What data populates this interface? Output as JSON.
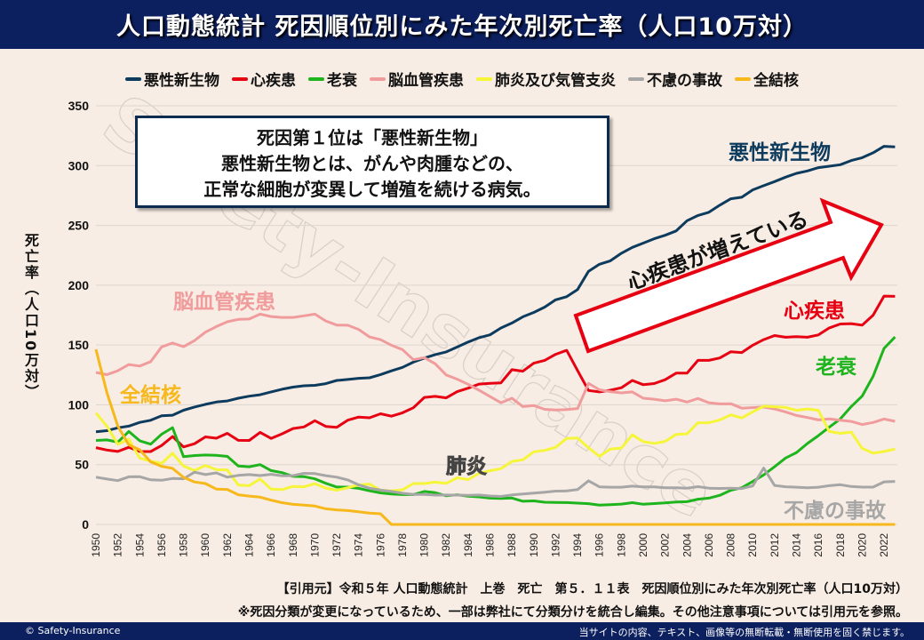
{
  "header": {
    "title": "人口動態統計 死因順位別にみた年次別死亡率（人口10万対）"
  },
  "watermark": "Safety-Insurance",
  "callout": {
    "lines": [
      "死因第１位は「悪性新生物」",
      "悪性新生物とは、がんや肉腫などの、",
      "正常な細胞が変異して増殖を続ける病気。"
    ]
  },
  "arrow_text": "心疾患が増えている",
  "series_labels": {
    "cancer": "悪性新生物",
    "heart": "心疾患",
    "senility": "老衰",
    "cerebro": "脳血管疾患",
    "tb": "全結核",
    "pneumonia": "肺炎",
    "accident": "不慮の事故"
  },
  "citation": {
    "source": "【引用元】令和５年 人口動態統計　上巻　死亡　第５．１１表　死因順位別にみた年次別死亡率（人口10万対）",
    "note": "※死因分類が変更になっているため、一部は弊社にて分類分けを統合し編集。その他注意事項については引用元を参照。"
  },
  "footer": {
    "copyright": "© Safety-Insurance",
    "notice": "当サイトの内容、テキスト、画像等の無断転載・無断使用を固く禁じます。"
  },
  "chart_data": {
    "type": "line",
    "title": "人口動態統計 死因順位別にみた年次別死亡率（人口10万対）",
    "ylabel": "死亡率（人口10万対）",
    "xlabel": "",
    "ylim": [
      0,
      350
    ],
    "yticks": [
      0,
      50,
      100,
      150,
      200,
      250,
      300,
      350
    ],
    "xlim": [
      1950,
      2023
    ],
    "xticks": [
      1950,
      1952,
      1954,
      1956,
      1958,
      1960,
      1962,
      1964,
      1966,
      1968,
      1970,
      1972,
      1974,
      1976,
      1978,
      1980,
      1982,
      1984,
      1986,
      1988,
      1990,
      1992,
      1994,
      1996,
      1998,
      2000,
      2002,
      2004,
      2006,
      2008,
      2010,
      2012,
      2014,
      2016,
      2018,
      2020,
      2022
    ],
    "grid": "horizontal",
    "legend_position": "top",
    "x_start": 1950,
    "series": [
      {
        "name": "悪性新生物",
        "color": "#0d3b5e",
        "values": [
          77.4,
          78.4,
          80.8,
          82.2,
          85.3,
          87.1,
          90.9,
          91.3,
          95.5,
          98.2,
          100.4,
          102.3,
          103.2,
          105.5,
          107.2,
          108.4,
          110.8,
          113.0,
          114.8,
          115.9,
          116.3,
          117.7,
          120.4,
          121.2,
          122.2,
          122.6,
          125.3,
          128.4,
          131.3,
          135.7,
          139.1,
          142.0,
          144.2,
          148.3,
          152.5,
          156.1,
          158.5,
          164.2,
          168.4,
          173.6,
          177.2,
          181.7,
          187.8,
          190.4,
          196.4,
          211.6,
          217.5,
          220.4,
          226.7,
          231.6,
          235.2,
          238.8,
          241.7,
          245.4,
          253.9,
          258.3,
          261.0,
          266.9,
          272.3,
          273.5,
          279.7,
          283.2,
          286.6,
          290.3,
          293.5,
          295.5,
          298.3,
          299.5,
          300.7,
          304.2,
          306.6,
          310.7,
          316.1,
          315.6
        ]
      },
      {
        "name": "心疾患",
        "color": "#e60012",
        "values": [
          64.2,
          62.2,
          61.0,
          64.5,
          61.0,
          60.9,
          66.0,
          73.5,
          64.8,
          67.5,
          73.2,
          72.1,
          76.2,
          70.3,
          70.2,
          77.0,
          71.9,
          75.7,
          80.2,
          81.5,
          86.7,
          82.0,
          81.2,
          87.2,
          89.8,
          89.2,
          92.5,
          90.5,
          93.3,
          97.6,
          106.2,
          107.1,
          105.8,
          111.0,
          113.9,
          117.3,
          117.9,
          118.4,
          129.4,
          128.1,
          134.8,
          137.2,
          142.2,
          145.6,
          128.6,
          112.0,
          110.8,
          112.2,
          114.3,
          120.4,
          116.8,
          117.8,
          121.0,
          126.5,
          126.5,
          137.2,
          137.2,
          139.2,
          144.4,
          143.7,
          149.8,
          154.5,
          157.9,
          156.5,
          157.0,
          156.5,
          158.4,
          164.3,
          167.6,
          167.9,
          166.6,
          174.9,
          190.9,
          190.7
        ]
      },
      {
        "name": "老衰",
        "color": "#1db41d",
        "values": [
          70.2,
          70.7,
          68.8,
          77.7,
          69.9,
          67.1,
          75.4,
          80.9,
          56.6,
          57.6,
          58.0,
          57.8,
          56.9,
          48.8,
          48.2,
          50.0,
          45.0,
          43.3,
          40.2,
          40.0,
          38.1,
          34.4,
          31.3,
          31.2,
          30.2,
          28.1,
          26.4,
          25.5,
          25.0,
          25.0,
          27.6,
          26.5,
          23.9,
          24.8,
          23.6,
          23.0,
          22.0,
          21.8,
          22.1,
          19.4,
          19.7,
          18.6,
          18.4,
          18.3,
          17.8,
          17.4,
          16.2,
          16.6,
          17.0,
          18.2,
          16.9,
          17.5,
          18.0,
          18.7,
          19.0,
          21.1,
          22.0,
          24.4,
          28.6,
          30.7,
          35.9,
          41.4,
          48.2,
          55.5,
          60.1,
          67.7,
          74.2,
          81.3,
          88.2,
          98.5,
          107.3,
          123.8,
          147.1,
          156.7
        ]
      },
      {
        "name": "脳血管疾患",
        "color": "#f19c9c",
        "values": [
          127.1,
          125.2,
          128.5,
          133.7,
          132.4,
          136.1,
          148.4,
          151.7,
          148.6,
          153.7,
          160.7,
          165.4,
          169.4,
          171.4,
          171.7,
          175.8,
          173.8,
          173.1,
          173.1,
          174.4,
          175.8,
          170.1,
          166.7,
          166.5,
          163.0,
          156.7,
          154.5,
          149.8,
          146.2,
          137.7,
          139.5,
          134.3,
          125.0,
          121.4,
          117.2,
          112.2,
          106.9,
          101.7,
          105.5,
          98.5,
          99.4,
          96.2,
          95.6,
          96.0,
          96.9,
          117.9,
          112.6,
          111.0,
          110.0,
          110.8,
          105.5,
          104.7,
          103.4,
          104.7,
          102.3,
          105.3,
          101.7,
          100.8,
          100.9,
          97.2,
          97.7,
          98.2,
          96.5,
          94.1,
          91.1,
          89.4,
          87.4,
          88.2,
          87.1,
          86.1,
          83.5,
          85.2,
          88.1,
          86.2
        ]
      },
      {
        "name": "肺炎及び気管支炎",
        "color": "#f5f53a",
        "values": [
          93.2,
          82.2,
          67.1,
          71.3,
          55.4,
          53.0,
          51.0,
          59.5,
          48.8,
          45.0,
          49.3,
          45.8,
          45.6,
          33.0,
          32.4,
          38.0,
          29.5,
          29.1,
          31.8,
          31.4,
          34.1,
          30.4,
          28.6,
          30.7,
          33.1,
          33.7,
          28.6,
          28.1,
          29.0,
          34.2,
          34.2,
          35.4,
          34.3,
          39.0,
          37.5,
          42.7,
          44.9,
          46.7,
          52.7,
          54.0,
          60.7,
          61.9,
          64.5,
          71.9,
          72.3,
          64.1,
          56.9,
          63.1,
          63.8,
          74.9,
          69.2,
          67.8,
          69.4,
          75.3,
          75.7,
          85.0,
          85.0,
          87.4,
          91.6,
          89.0,
          94.1,
          98.9,
          98.4,
          97.8,
          95.4,
          96.5,
          95.4,
          77.7,
          76.2,
          77.2,
          63.6,
          59.6,
          61.0,
          63.0
        ]
      },
      {
        "name": "不慮の事故",
        "color": "#a6a6a6",
        "values": [
          39.5,
          38.0,
          36.6,
          39.8,
          39.9,
          37.3,
          36.9,
          38.4,
          38.2,
          43.7,
          41.7,
          43.1,
          39.5,
          41.0,
          41.7,
          40.9,
          41.9,
          40.7,
          40.8,
          42.7,
          42.5,
          40.8,
          39.5,
          37.2,
          33.1,
          30.3,
          28.7,
          27.6,
          26.1,
          25.1,
          25.1,
          24.5,
          24.6,
          24.5,
          24.3,
          24.6,
          23.8,
          23.4,
          24.7,
          25.4,
          26.2,
          26.9,
          27.9,
          28.0,
          29.1,
          36.5,
          31.4,
          31.1,
          31.1,
          32.0,
          31.4,
          31.4,
          30.7,
          30.7,
          30.3,
          31.6,
          30.3,
          30.1,
          30.3,
          30.0,
          32.2,
          47.1,
          32.6,
          31.5,
          31.1,
          30.6,
          31.1,
          32.4,
          33.2,
          31.7,
          31.2,
          31.2,
          35.6,
          36.0
        ]
      },
      {
        "name": "全結核",
        "color": "#f7b81c",
        "values": [
          146.4,
          110.3,
          82.2,
          66.5,
          62.4,
          52.3,
          48.6,
          46.9,
          39.4,
          35.5,
          34.2,
          29.6,
          29.3,
          24.8,
          23.7,
          22.8,
          20.3,
          18.2,
          16.8,
          16.1,
          15.4,
          13.1,
          12.2,
          11.6,
          10.6,
          9.5,
          8.9,
          0,
          0,
          0,
          0,
          0,
          0,
          0,
          0,
          0,
          0,
          0,
          0,
          0,
          0,
          0,
          0,
          0,
          0,
          0,
          0,
          0,
          0,
          0,
          0,
          0,
          0,
          0,
          0,
          0,
          0,
          0,
          0,
          0,
          0,
          0,
          0,
          0,
          0,
          0,
          0,
          0,
          0,
          0,
          0,
          0,
          0,
          0
        ]
      }
    ]
  }
}
